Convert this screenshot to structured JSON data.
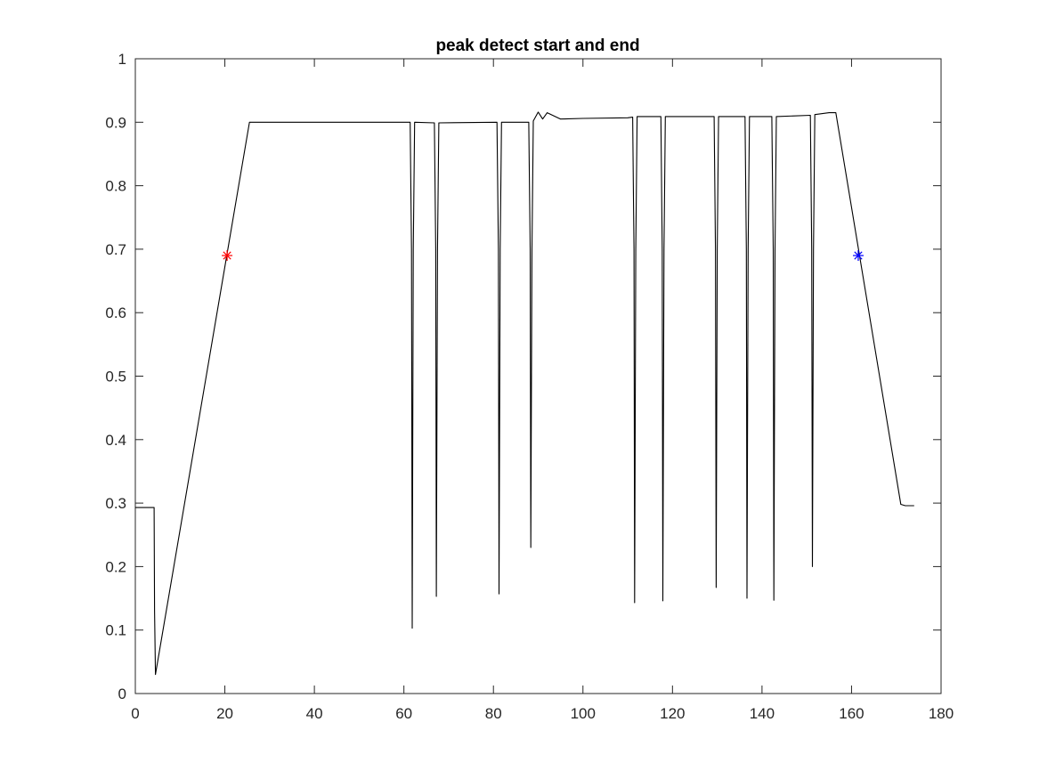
{
  "chart_data": {
    "type": "line",
    "title": "peak detect start and end",
    "xlabel": "",
    "ylabel": "",
    "xlim": [
      0,
      180
    ],
    "ylim": [
      0,
      1
    ],
    "grid": false,
    "legend": "none",
    "xticks": [
      0,
      20,
      40,
      60,
      80,
      100,
      120,
      140,
      160,
      180
    ],
    "yticks": [
      0,
      0.1,
      0.2,
      0.3,
      0.4,
      0.5,
      0.6,
      0.7,
      0.8,
      0.9,
      1
    ],
    "xtick_labels": [
      "0",
      "20",
      "40",
      "60",
      "80",
      "100",
      "120",
      "140",
      "160",
      "180"
    ],
    "ytick_labels": [
      "0",
      "0.1",
      "0.2",
      "0.3",
      "0.4",
      "0.5",
      "0.6",
      "0.7",
      "0.8",
      "0.9",
      "1"
    ],
    "series": [
      {
        "color": "#000000",
        "x": [
          0,
          4.2,
          4.3,
          4.5,
          25.5,
          26,
          40,
          55,
          61.4,
          61.7,
          61.85,
          62.1,
          62.4,
          66.8,
          67.1,
          67.25,
          67.5,
          67.8,
          80.8,
          81.1,
          81.25,
          81.5,
          81.8,
          87.9,
          88.2,
          88.35,
          88.6,
          88.9,
          90,
          91,
          92,
          95,
          100,
          110,
          111.1,
          111.4,
          111.55,
          111.8,
          112.1,
          117.4,
          117.7,
          117.85,
          118.1,
          118.4,
          129.3,
          129.6,
          129.75,
          130,
          130.3,
          136.2,
          136.5,
          136.65,
          136.9,
          137.2,
          142.2,
          142.5,
          142.65,
          142.9,
          143.2,
          150.8,
          151.1,
          151.25,
          151.5,
          151.8,
          155,
          156.5,
          171,
          172,
          174
        ],
        "y": [
          0.293,
          0.293,
          0.13,
          0.03,
          0.9,
          0.9,
          0.9,
          0.9,
          0.9,
          0.7,
          0.103,
          0.7,
          0.9,
          0.899,
          0.7,
          0.153,
          0.7,
          0.899,
          0.9,
          0.7,
          0.157,
          0.7,
          0.9,
          0.9,
          0.7,
          0.23,
          0.7,
          0.902,
          0.916,
          0.905,
          0.915,
          0.905,
          0.906,
          0.907,
          0.908,
          0.7,
          0.143,
          0.7,
          0.909,
          0.909,
          0.7,
          0.146,
          0.7,
          0.909,
          0.909,
          0.7,
          0.167,
          0.7,
          0.909,
          0.909,
          0.7,
          0.15,
          0.7,
          0.909,
          0.909,
          0.7,
          0.147,
          0.7,
          0.909,
          0.911,
          0.7,
          0.2,
          0.7,
          0.912,
          0.915,
          0.915,
          0.298,
          0.296,
          0.296
        ]
      }
    ],
    "markers": [
      {
        "label_color": "#ff0000",
        "symbol": "asterisk",
        "x": 20.5,
        "y": 0.69
      },
      {
        "label_color": "#0000ff",
        "symbol": "asterisk",
        "x": 161.5,
        "y": 0.69
      }
    ]
  }
}
